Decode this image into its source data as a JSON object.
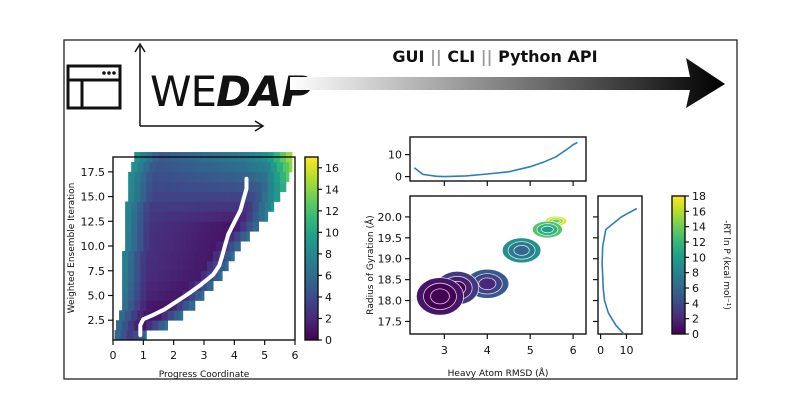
{
  "header": {
    "logo_main": "WE",
    "logo_accent": "DAP",
    "interfaces": [
      "GUI",
      "CLI",
      "Python API"
    ],
    "separator": "||"
  },
  "colors": {
    "viridis": [
      "#440154",
      "#482878",
      "#3e4989",
      "#31688e",
      "#26828e",
      "#1f9e89",
      "#35b779",
      "#6ece58",
      "#b5de2b",
      "#fde725"
    ],
    "trace": "#2c7fb8",
    "path": "#ffffff"
  },
  "chart_data": [
    {
      "type": "heatmap",
      "name": "iteration-vs-progress",
      "xlabel": "Progress Coordinate",
      "ylabel": "Weighted Ensemble Iteration",
      "xlim": [
        0,
        6
      ],
      "ylim": [
        0.5,
        19
      ],
      "xticks": [
        "0",
        "1",
        "2",
        "3",
        "4",
        "5",
        "6"
      ],
      "yticks": [
        "2.5",
        "5.0",
        "7.5",
        "10.0",
        "12.5",
        "15.0",
        "17.5"
      ],
      "ytick_values": [
        2.5,
        5.0,
        7.5,
        10.0,
        12.5,
        15.0,
        17.5
      ],
      "colorbar": {
        "min": 0,
        "max": 17,
        "ticks": [
          "0",
          "2",
          "4",
          "6",
          "8",
          "10",
          "12",
          "14",
          "16"
        ]
      },
      "iterations": [
        1,
        2,
        3,
        4,
        5,
        6,
        7,
        8,
        9,
        10,
        11,
        12,
        13,
        14,
        15,
        16,
        17,
        18,
        19
      ],
      "x_min_per_iteration": [
        0.05,
        0.1,
        0.2,
        0.3,
        0.3,
        0.3,
        0.3,
        0.3,
        0.3,
        0.4,
        0.4,
        0.4,
        0.4,
        0.4,
        0.5,
        0.5,
        0.5,
        0.6,
        0.7
      ],
      "x_max_per_iteration": [
        1.1,
        1.8,
        2.3,
        2.7,
        3.0,
        3.3,
        3.6,
        3.8,
        4.0,
        4.2,
        4.5,
        4.8,
        5.1,
        5.3,
        5.5,
        5.7,
        5.8,
        5.9,
        5.9
      ],
      "average_path": {
        "x": [
          0.9,
          0.9,
          1.0,
          1.3,
          1.7,
          2.1,
          2.5,
          2.9,
          3.3,
          3.5,
          3.6,
          3.7,
          3.8,
          4.0,
          4.2,
          4.3,
          4.4,
          4.4
        ],
        "y": [
          1.0,
          2.0,
          2.6,
          3.0,
          3.6,
          4.4,
          5.2,
          6.1,
          7.1,
          8.0,
          9.0,
          10.1,
          11.2,
          12.4,
          13.6,
          14.7,
          15.8,
          16.8
        ]
      }
    },
    {
      "type": "heatmap",
      "name": "rg-vs-rmsd",
      "xlabel": "Heavy Atom RMSD (Å)",
      "ylabel": "Radius of Gyration (Å)",
      "xlim": [
        2.2,
        6.3
      ],
      "ylim": [
        17.2,
        20.5
      ],
      "xticks": [
        "3",
        "4",
        "5",
        "6"
      ],
      "xtick_values": [
        3,
        4,
        5,
        6
      ],
      "yticks": [
        "17.5",
        "18.0",
        "18.5",
        "19.0",
        "19.5",
        "20.0"
      ],
      "ytick_values": [
        17.5,
        18.0,
        18.5,
        19.0,
        19.5,
        20.0
      ],
      "colorbar": {
        "label": "-RT ln P (kcal mol⁻¹)",
        "min": 0,
        "max": 18,
        "ticks": [
          "0",
          "2",
          "4",
          "6",
          "8",
          "10",
          "12",
          "14",
          "16",
          "18"
        ]
      },
      "basins": [
        {
          "x": 2.9,
          "y": 18.1,
          "rx": 0.55,
          "ry": 0.45,
          "value": 1
        },
        {
          "x": 3.3,
          "y": 18.3,
          "rx": 0.5,
          "ry": 0.4,
          "value": 3
        },
        {
          "x": 4.0,
          "y": 18.4,
          "rx": 0.5,
          "ry": 0.35,
          "value": 5
        },
        {
          "x": 4.8,
          "y": 19.2,
          "rx": 0.45,
          "ry": 0.3,
          "value": 9
        },
        {
          "x": 5.4,
          "y": 19.7,
          "rx": 0.35,
          "ry": 0.2,
          "value": 13
        },
        {
          "x": 5.6,
          "y": 19.9,
          "rx": 0.25,
          "ry": 0.12,
          "value": 17
        }
      ]
    },
    {
      "type": "line",
      "name": "rmsd-marginal",
      "yticks": [
        "0",
        "10"
      ],
      "ytick_values": [
        0,
        10
      ],
      "ylim": [
        -2,
        18
      ],
      "x": [
        2.3,
        2.5,
        2.8,
        3.0,
        3.5,
        4.0,
        4.5,
        5.0,
        5.3,
        5.6,
        5.9,
        6.0,
        6.1
      ],
      "y": [
        4,
        1,
        0.2,
        0,
        0.3,
        1.2,
        2.2,
        4.5,
        6.5,
        9,
        13,
        14.5,
        15.5
      ]
    },
    {
      "type": "line",
      "name": "rg-marginal",
      "xticks": [
        "0",
        "10"
      ],
      "xtick_values": [
        0,
        10
      ],
      "xlim": [
        -1,
        16
      ],
      "y": [
        17.2,
        17.4,
        17.7,
        18.0,
        18.3,
        18.6,
        18.9,
        19.3,
        19.7,
        20.0,
        20.2
      ],
      "x": [
        9,
        6,
        3,
        1.5,
        1,
        0.8,
        0.6,
        0.8,
        2,
        8,
        14
      ]
    }
  ]
}
